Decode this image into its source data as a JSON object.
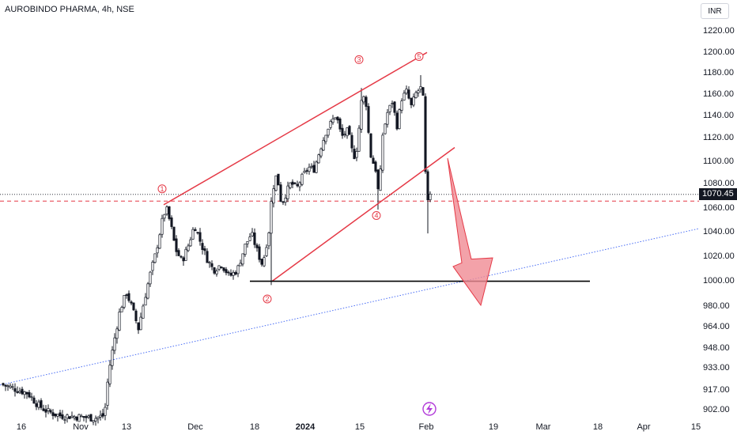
{
  "header": {
    "title": "AUROBINDO PHARMA, 4h, NSE"
  },
  "price_axis": {
    "unit": "INR"
  },
  "last_price": "1070.45",
  "colors": {
    "up_candle": "#ffffff",
    "down_candle": "#131722",
    "channel": "#e53946",
    "support": "#000000",
    "trendline": "#4a6ef5",
    "arrow_fill": "#f08b93",
    "dashed_level": "#e53946"
  },
  "icons": {
    "event_marker": "lightning-icon"
  },
  "chart_data": {
    "type": "candlestick",
    "title": "AUROBINDO PHARMA, 4h, NSE",
    "y_ticks": [
      "1220.00",
      "1200.00",
      "1180.00",
      "1160.00",
      "1140.00",
      "1120.00",
      "1100.00",
      "1080.00",
      "1060.00",
      "1040.00",
      "1020.00",
      "1000.00",
      "980.00",
      "964.00",
      "948.00",
      "933.00",
      "917.00",
      "902.00"
    ],
    "x_ticks": [
      {
        "label": "16",
        "bold": false
      },
      {
        "label": "Nov",
        "bold": false
      },
      {
        "label": "13",
        "bold": false
      },
      {
        "label": "Dec",
        "bold": false
      },
      {
        "label": "18",
        "bold": false
      },
      {
        "label": "2024",
        "bold": true
      },
      {
        "label": "15",
        "bold": false
      },
      {
        "label": "Feb",
        "bold": false
      },
      {
        "label": "19",
        "bold": false
      },
      {
        "label": "Mar",
        "bold": false
      },
      {
        "label": "18",
        "bold": false
      },
      {
        "label": "Apr",
        "bold": false
      },
      {
        "label": "15",
        "bold": false
      }
    ],
    "last_price": 1070.45,
    "dashed_level": 1065,
    "support_level": 999,
    "wave_labels": [
      {
        "label": "1",
        "price": 1075
      },
      {
        "label": "2",
        "price": 985
      },
      {
        "label": "3",
        "price": 1192
      },
      {
        "label": "4",
        "price": 1053
      },
      {
        "label": "5",
        "price": 1195
      }
    ],
    "annotations": [
      "Rising wedge channel (upper and lower red trendlines)",
      "Horizontal support line near 1000",
      "Long-term dotted blue rising trendline",
      "Downward red arrow projecting decline toward ~980"
    ]
  }
}
